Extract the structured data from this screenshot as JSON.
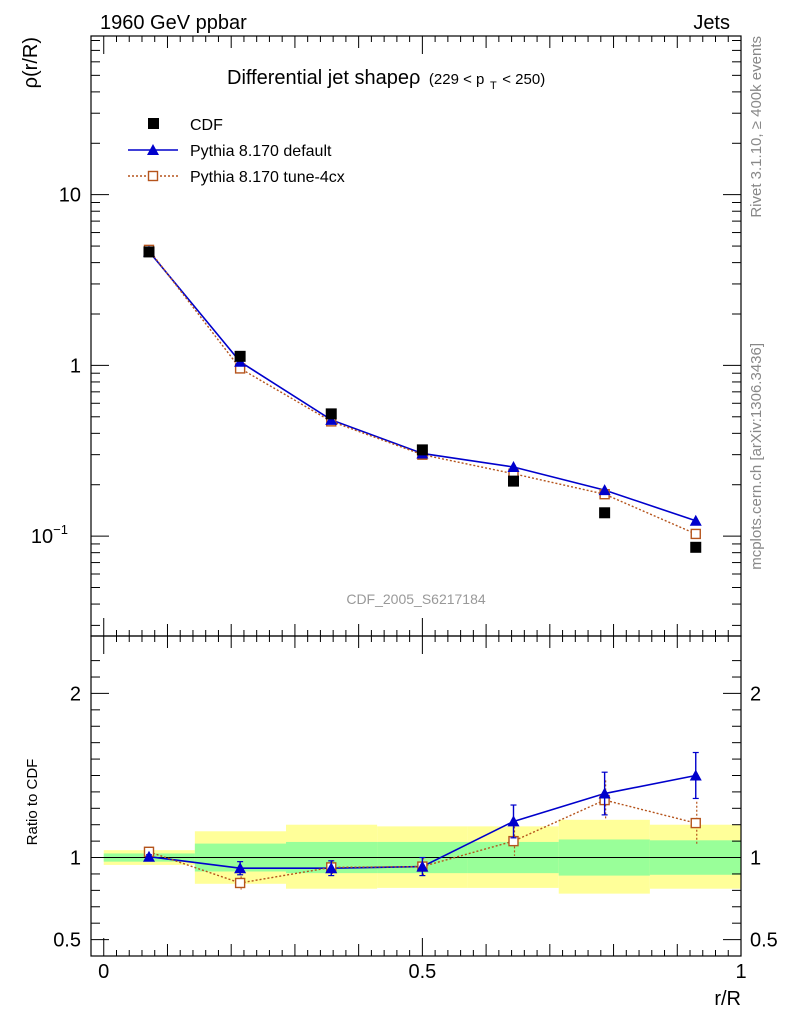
{
  "header": {
    "left_label": "1960 GeV ppbar",
    "right_label": "Jets"
  },
  "side_labels": {
    "rivet": "Rivet 3.1.10, ≥ 400k events",
    "mcplots": "mcplots.cern.ch [arXiv:1306.3436]"
  },
  "chart_data": [
    {
      "type": "scatter",
      "title": "Differential jet shapeρ",
      "title_suffix": "(229 < p",
      "title_sub": "T",
      "title_end": " < 250)",
      "watermark": "CDF_2005_S6217184",
      "ylabel": "ρ(r/R)",
      "xlabel": "",
      "yscale": "log",
      "ylim": [
        0.026,
        85
      ],
      "xlim": [
        -0.02,
        1.0
      ],
      "y_ticks": [
        {
          "value": 10,
          "label": "10"
        },
        {
          "value": 1,
          "label": "1"
        },
        {
          "value": 0.1,
          "label": "10",
          "sup": "−1"
        }
      ],
      "legend_position": "top-left",
      "x": [
        0.071,
        0.214,
        0.357,
        0.5,
        0.643,
        0.786,
        0.929
      ],
      "series": [
        {
          "name": "CDF",
          "style": "data",
          "color": "#000000",
          "values": [
            4.62,
            1.13,
            0.52,
            0.32,
            0.21,
            0.137,
            0.086
          ]
        },
        {
          "name": "Pythia 8.170 default",
          "style": "line",
          "color": "#0000cc",
          "values": [
            4.65,
            1.05,
            0.48,
            0.305,
            0.254,
            0.186,
            0.123
          ],
          "errors": [
            0.03,
            0.02,
            0.01,
            0.008,
            0.02,
            0.018,
            0.013
          ]
        },
        {
          "name": "Pythia 8.170 tune-4cx",
          "style": "dotted",
          "color": "#b5541c",
          "values": [
            4.75,
            0.96,
            0.47,
            0.3,
            0.232,
            0.176,
            0.103
          ],
          "errors": [
            0.03,
            0.02,
            0.01,
            0.008,
            0.018,
            0.016,
            0.011
          ]
        }
      ]
    },
    {
      "type": "scatter",
      "ylabel": "Ratio to CDF",
      "xlabel": "r/R",
      "ylim": [
        0.4,
        2.35
      ],
      "xlim": [
        -0.02,
        1.0
      ],
      "x_ticks": [
        {
          "value": 0,
          "label": "0"
        },
        {
          "value": 0.5,
          "label": "0.5"
        },
        {
          "value": 1,
          "label": "1"
        }
      ],
      "y_ticks": [
        {
          "value": 2,
          "label": "2"
        },
        {
          "value": 1,
          "label": "1"
        },
        {
          "value": 0.5,
          "label": "0.5"
        }
      ],
      "bands": [
        {
          "x0": 0.0,
          "x1": 0.143,
          "green": [
            0.975,
            1.025
          ],
          "yellow": [
            0.955,
            1.045
          ]
        },
        {
          "x0": 0.143,
          "x1": 0.286,
          "green": [
            0.915,
            1.085
          ],
          "yellow": [
            0.84,
            1.16
          ]
        },
        {
          "x0": 0.286,
          "x1": 0.429,
          "green": [
            0.905,
            1.095
          ],
          "yellow": [
            0.81,
            1.2
          ]
        },
        {
          "x0": 0.429,
          "x1": 0.571,
          "green": [
            0.905,
            1.095
          ],
          "yellow": [
            0.815,
            1.19
          ]
        },
        {
          "x0": 0.571,
          "x1": 0.714,
          "green": [
            0.905,
            1.095
          ],
          "yellow": [
            0.815,
            1.19
          ]
        },
        {
          "x0": 0.714,
          "x1": 0.857,
          "green": [
            0.89,
            1.11
          ],
          "yellow": [
            0.78,
            1.23
          ]
        },
        {
          "x0": 0.857,
          "x1": 1.0,
          "green": [
            0.895,
            1.105
          ],
          "yellow": [
            0.81,
            1.2
          ]
        }
      ],
      "x": [
        0.071,
        0.214,
        0.357,
        0.5,
        0.643,
        0.786,
        0.929
      ],
      "series": [
        {
          "name": "Pythia 8.170 default",
          "style": "line",
          "color": "#0000cc",
          "values": [
            1.005,
            0.935,
            0.935,
            0.945,
            1.22,
            1.39,
            1.5
          ],
          "errors": [
            0.012,
            0.04,
            0.045,
            0.055,
            0.1,
            0.13,
            0.14
          ]
        },
        {
          "name": "Pythia 8.170 tune-4cx",
          "style": "dotted",
          "color": "#b5541c",
          "values": [
            1.035,
            0.845,
            0.94,
            0.945,
            1.1,
            1.35,
            1.21
          ],
          "errors": [
            0.012,
            0.04,
            0.045,
            0.055,
            0.09,
            0.12,
            0.13
          ]
        }
      ]
    }
  ]
}
